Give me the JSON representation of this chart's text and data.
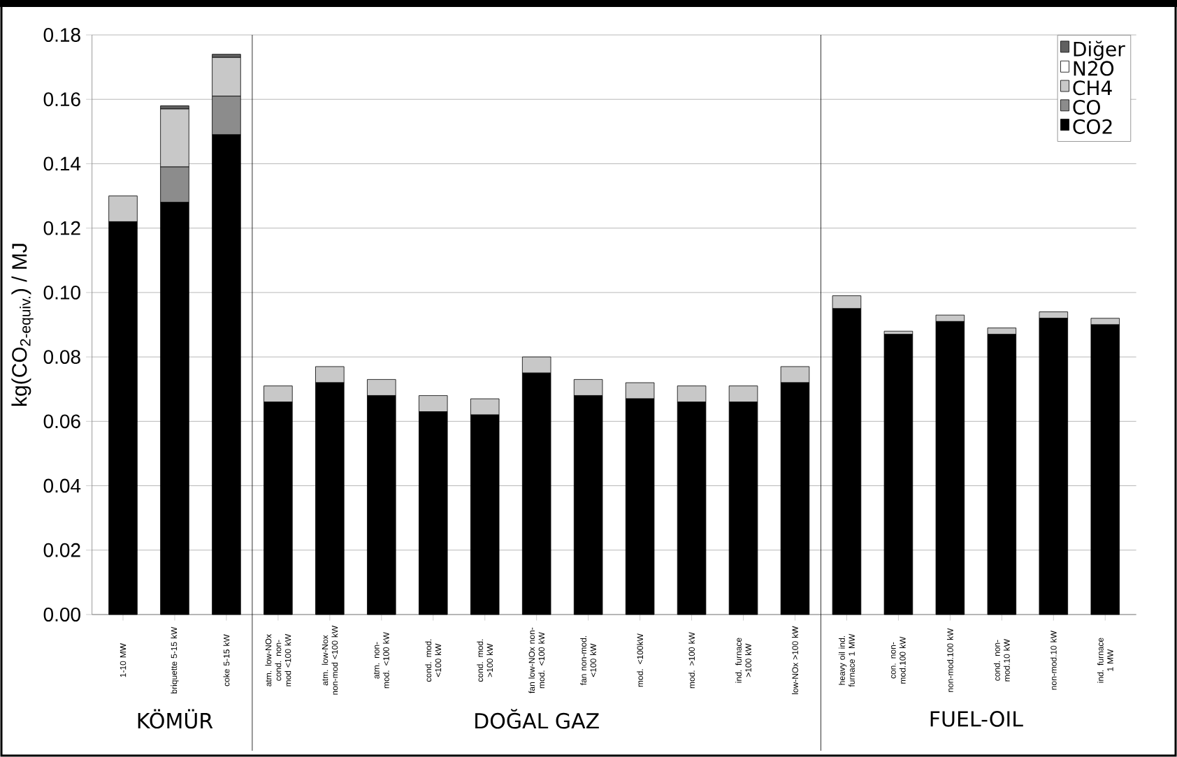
{
  "chart_data": {
    "type": "bar",
    "stacked": true,
    "ylabel": "kg(CO$_{2-equiv.}$) / MJ",
    "categories": [
      "1-10 MW",
      "briquette 5-15 kW",
      "coke 5-15 kW",
      "atm. low-NOx cond. non-mod <100 kW",
      "atm. low-Nox non-mod <100 kW",
      "atm. non-mod. <100 kW",
      "cond. mod. <100 kW",
      "cond. mod. >100 kW",
      "fan low-NOx non-mod. <100 kW",
      "fan non-mod. <100 kW",
      "mod. <100kW",
      "mod. >100 kW",
      "ind. furnace >100 kW",
      "low-NOx >100 kW",
      "heavy oil ind. furnace 1 MW",
      "con. non-mod.100 kW",
      "non-mod.100 kW",
      "cond. non-mod.10 kW",
      "non-mod.10 kW",
      "ind. furnace 1 MW"
    ],
    "series": [
      {
        "name": "CO2",
        "color": "#000000",
        "values": [
          0.122,
          0.128,
          0.149,
          0.066,
          0.072,
          0.068,
          0.063,
          0.062,
          0.075,
          0.068,
          0.067,
          0.066,
          0.066,
          0.072,
          0.095,
          0.087,
          0.091,
          0.087,
          0.092,
          0.09
        ]
      },
      {
        "name": "CO",
        "color": "#8c8c8c",
        "values": [
          0,
          0.011,
          0.012,
          0,
          0,
          0,
          0,
          0,
          0,
          0,
          0,
          0,
          0,
          0,
          0,
          0,
          0,
          0,
          0,
          0
        ]
      },
      {
        "name": "CH4",
        "color": "#c8c8c8",
        "values": [
          0.008,
          0.018,
          0.012,
          0.005,
          0.005,
          0.005,
          0.005,
          0.005,
          0.005,
          0.005,
          0.005,
          0.005,
          0.005,
          0.005,
          0.004,
          0.001,
          0.002,
          0.002,
          0.002,
          0.002
        ]
      },
      {
        "name": "N2O",
        "color": "#ffffff",
        "values": [
          0,
          0,
          0,
          0,
          0,
          0,
          0,
          0,
          0,
          0,
          0,
          0,
          0,
          0,
          0,
          0,
          0,
          0,
          0,
          0
        ]
      },
      {
        "name": "Diğer",
        "color": "#606060",
        "values": [
          0,
          0.001,
          0.001,
          0,
          0,
          0,
          0,
          0,
          0,
          0,
          0,
          0,
          0,
          0,
          0,
          0,
          0,
          0,
          0,
          0
        ]
      }
    ],
    "ylim": [
      0,
      0.18
    ],
    "yticks": [
      {
        "value": 0,
        "label": "0.00"
      },
      {
        "value": 0.02,
        "label": "0.02"
      },
      {
        "value": 0.04,
        "label": "0.04"
      },
      {
        "value": 0.06,
        "label": "0.06"
      },
      {
        "value": 0.08,
        "label": "0.08"
      },
      {
        "value": 0.1,
        "label": "0.10"
      },
      {
        "value": 0.12,
        "label": "0.12"
      },
      {
        "value": 0.14,
        "label": "0.14"
      },
      {
        "value": 0.16,
        "label": "0.16"
      },
      {
        "value": 0.18,
        "label": "0.18"
      }
    ],
    "grid": "y",
    "legend": "top right",
    "annotations": [
      "KÖMÜR",
      "DOĞAL GAZ",
      "FUEL-OIL"
    ]
  }
}
